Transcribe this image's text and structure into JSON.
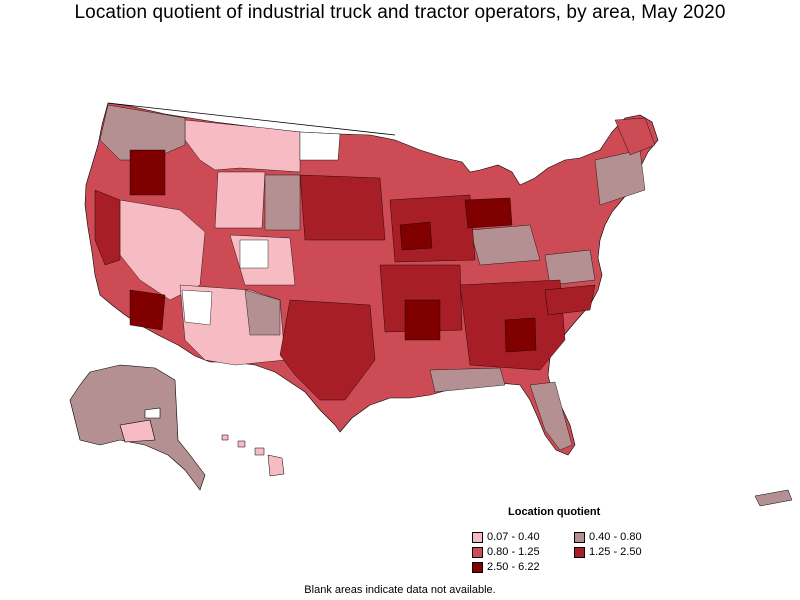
{
  "title": "Location quotient of industrial truck and tractor operators, by area, May 2020",
  "legend": {
    "title": "Location quotient",
    "items": [
      {
        "label": "0.07 - 0.40",
        "color": "#f7bcc3"
      },
      {
        "label": "0.40 - 0.80",
        "color": "#b59092"
      },
      {
        "label": "0.80 - 1.25",
        "color": "#cc4b55"
      },
      {
        "label": "1.25 - 2.50",
        "color": "#a81e26"
      },
      {
        "label": "2.50 - 6.22",
        "color": "#800000"
      }
    ]
  },
  "footnote": "Blank areas indicate data not available.",
  "map": {
    "region": "United States (with Alaska, Hawaii, Puerto Rico)",
    "border_color": "#000000",
    "no_data_color": "#ffffff"
  }
}
